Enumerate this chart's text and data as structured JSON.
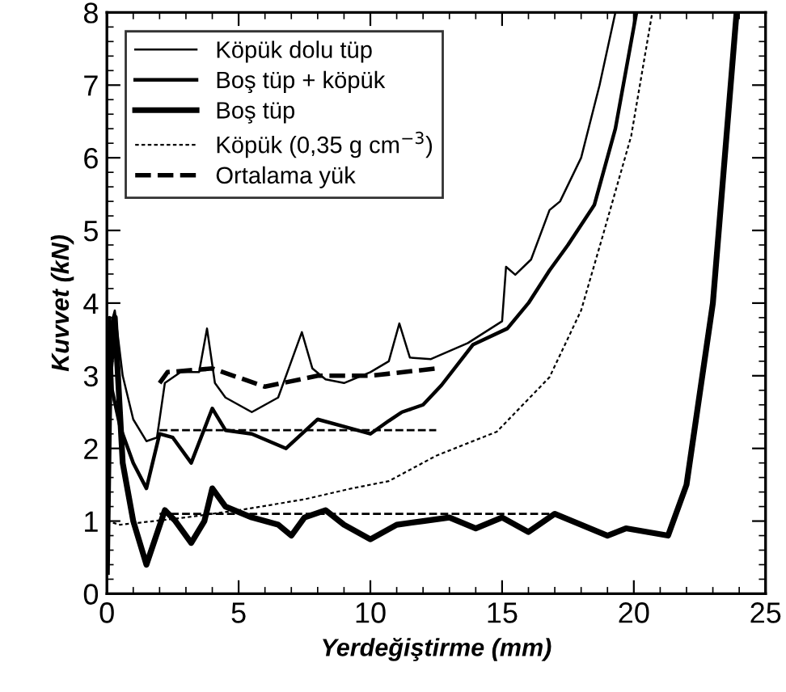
{
  "chart_data": {
    "type": "line",
    "xlabel": "Yerdeğiştirme (mm)",
    "ylabel": "Kuvvet (kN)",
    "xlim": [
      0,
      25
    ],
    "ylim": [
      0,
      8
    ],
    "xticks": [
      0,
      5,
      10,
      15,
      20,
      25
    ],
    "yticks": [
      0,
      1,
      2,
      3,
      4,
      5,
      6,
      7,
      8
    ],
    "grid": false,
    "legend": "top left",
    "marker": "none",
    "series": [
      {
        "name": "Köpük dolu tüp",
        "color": "#000000",
        "line_style": "solid",
        "x": [
          0,
          0.15,
          0.3,
          0.6,
          1.0,
          1.5,
          1.9,
          2.2,
          2.8,
          3.5,
          3.8,
          4.1,
          4.5,
          5.5,
          6.5,
          7.0,
          7.4,
          7.8,
          8.3,
          9.0,
          10.0,
          10.7,
          11.1,
          11.5,
          12.3,
          13.7,
          15.0,
          15.15,
          15.5,
          16.1,
          16.8,
          17.2,
          18.0,
          18.7,
          19.3
        ],
        "values": [
          0.3,
          3.7,
          3.9,
          3.0,
          2.4,
          2.1,
          2.15,
          2.9,
          3.05,
          3.05,
          3.65,
          2.9,
          2.7,
          2.5,
          2.7,
          3.2,
          3.6,
          3.1,
          2.95,
          2.9,
          3.05,
          3.2,
          3.72,
          3.25,
          3.23,
          3.45,
          3.75,
          4.5,
          4.39,
          4.6,
          5.28,
          5.4,
          6.0,
          7.0,
          8.0
        ]
      },
      {
        "name": "Boş tüp + köpük",
        "color": "#000000",
        "line_style": "solid",
        "x": [
          0,
          0.1,
          0.2,
          0.5,
          1.0,
          1.5,
          2.0,
          2.5,
          3.2,
          4.0,
          4.5,
          5.5,
          6.8,
          8.0,
          9.0,
          10.0,
          10.7,
          11.2,
          12.0,
          12.7,
          13.9,
          15.2,
          16.0,
          16.8,
          17.5,
          18.5,
          19.3,
          20.1
        ],
        "values": [
          0.5,
          3.8,
          2.8,
          2.3,
          1.8,
          1.45,
          2.2,
          2.15,
          1.8,
          2.55,
          2.25,
          2.2,
          2.0,
          2.4,
          2.3,
          2.2,
          2.38,
          2.5,
          2.6,
          2.87,
          3.43,
          3.65,
          4.0,
          4.45,
          4.8,
          5.35,
          6.4,
          8.0
        ]
      },
      {
        "name": "Boş tüp",
        "color": "#000000",
        "line_style": "solid",
        "x": [
          0,
          0.1,
          0.3,
          0.6,
          1.0,
          1.5,
          2.2,
          2.6,
          3.2,
          3.7,
          4.0,
          4.5,
          5.5,
          6.5,
          7.0,
          7.5,
          8.3,
          9.0,
          10.0,
          11.0,
          12.0,
          13.0,
          14.0,
          15.0,
          16.0,
          17.0,
          18.0,
          19.0,
          19.7,
          20.5,
          21.3,
          22.0,
          23.0,
          23.9
        ],
        "values": [
          0.3,
          3.0,
          3.8,
          1.8,
          1.0,
          0.4,
          1.15,
          1.0,
          0.7,
          1.0,
          1.45,
          1.2,
          1.05,
          0.95,
          0.8,
          1.05,
          1.15,
          0.95,
          0.75,
          0.95,
          1.0,
          1.05,
          0.9,
          1.05,
          0.85,
          1.1,
          0.95,
          0.8,
          0.9,
          0.85,
          0.8,
          1.5,
          4.0,
          8.0
        ]
      },
      {
        "name": "Köpük (0,35 g cm$^{−3}$)",
        "color": "#000000",
        "line_style": "dotted",
        "x": [
          0.0,
          0.5,
          1.3,
          3.0,
          5.2,
          7.5,
          9.3,
          10.7,
          12.5,
          14.8,
          16.8,
          18.0,
          18.8,
          19.9,
          20.7
        ],
        "values": [
          1.0,
          0.95,
          0.98,
          1.05,
          1.16,
          1.3,
          1.45,
          1.55,
          1.9,
          2.23,
          2.98,
          3.9,
          4.9,
          6.3,
          8.0
        ]
      },
      {
        "name": "Ortalama yük",
        "color": "#000000",
        "line_style": "dashed",
        "x": [
          2.0,
          2.3,
          4.0,
          6.0,
          8.0,
          10.0,
          12.5
        ],
        "values": [
          2.9,
          3.05,
          3.1,
          2.85,
          3.0,
          3.0,
          3.1
        ]
      },
      {
        "color": "#000000",
        "line_style": "dashed",
        "x": [
          2.0,
          12.5
        ],
        "values": [
          2.25,
          2.25
        ]
      },
      {
        "color": "#000000",
        "line_style": "dashed",
        "x": [
          2.0,
          17.0
        ],
        "values": [
          1.1,
          1.1
        ]
      }
    ]
  }
}
